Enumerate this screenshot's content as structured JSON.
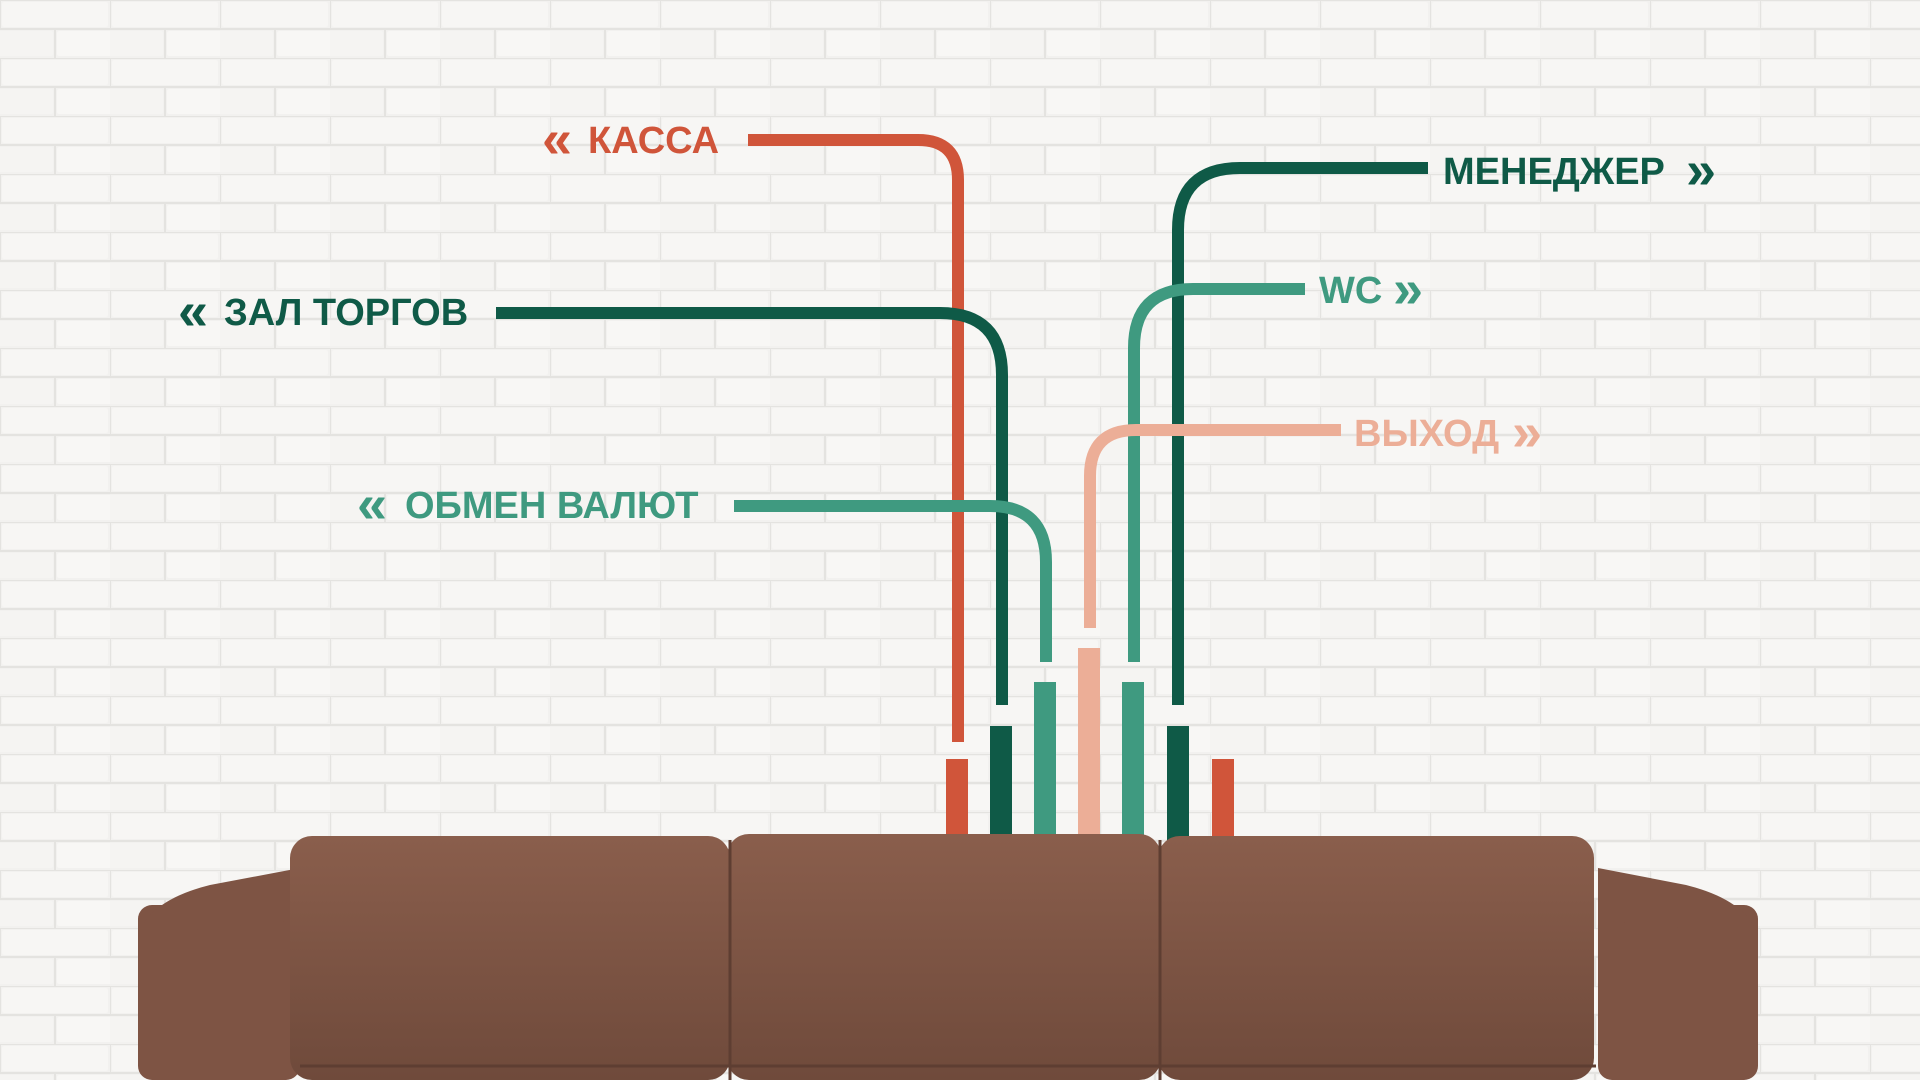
{
  "colors": {
    "red": "#d0553a",
    "dark_green": "#0f5a47",
    "mid_green": "#3f9a80",
    "peach": "#ecae97",
    "sofa": "#7e5444",
    "wall": "#f1f0ee"
  },
  "signs": {
    "kassa": {
      "label": "КАССА",
      "arrow": "«"
    },
    "zal": {
      "label": "ЗАЛ ТОРГОВ",
      "arrow": "«"
    },
    "obmen": {
      "label": "ОБМЕН ВАЛЮТ",
      "arrow": "«"
    },
    "manager": {
      "label": "МЕНЕДЖЕР",
      "arrow": "»"
    },
    "wc": {
      "label": "WC",
      "arrow": "»"
    },
    "exit": {
      "label": "ВЫХОД",
      "arrow": "»"
    }
  },
  "icons": {
    "left_arrow": "double-chevron-left-icon",
    "right_arrow": "double-chevron-right-icon"
  }
}
